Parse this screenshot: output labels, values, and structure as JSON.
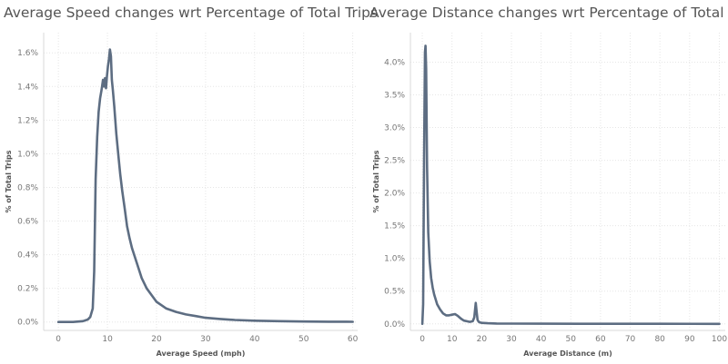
{
  "chart_data": [
    {
      "type": "line",
      "title": "Average Speed changes wrt Percentage of Total Trips",
      "xlabel": "Average Speed (mph)",
      "ylabel": "% of Total Trips",
      "xlim": [
        -3,
        61
      ],
      "ylim": [
        -0.05,
        1.72
      ],
      "xticks": [
        0,
        10,
        20,
        30,
        40,
        50,
        60
      ],
      "yticks": [
        0.0,
        0.2,
        0.4,
        0.6,
        0.8,
        1.0,
        1.2,
        1.4,
        1.6
      ],
      "ytick_labels": [
        "0.0%",
        "0.2%",
        "0.4%",
        "0.6%",
        "0.8%",
        "1.0%",
        "1.2%",
        "1.4%",
        "1.6%"
      ],
      "grid": true,
      "color": "#5d6d82",
      "series": [
        {
          "x": [
            0,
            3,
            5,
            6,
            6.5,
            7,
            7.3,
            7.6,
            7.9,
            8.2,
            8.5,
            8.8,
            9.1,
            9.3,
            9.5,
            9.7,
            9.9,
            10.1,
            10.3,
            10.5,
            10.7,
            10.9,
            11.1,
            11.4,
            11.8,
            12.2,
            12.6,
            13,
            13.5,
            14,
            14.5,
            15,
            16,
            17,
            18,
            19,
            20,
            21,
            22,
            24,
            26,
            28,
            30,
            33,
            36,
            40,
            45,
            50,
            55,
            60
          ],
          "y": [
            0.0,
            0.0,
            0.005,
            0.015,
            0.03,
            0.08,
            0.3,
            0.85,
            1.1,
            1.25,
            1.33,
            1.38,
            1.44,
            1.4,
            1.45,
            1.39,
            1.46,
            1.52,
            1.56,
            1.62,
            1.58,
            1.44,
            1.38,
            1.28,
            1.12,
            1.0,
            0.88,
            0.78,
            0.68,
            0.57,
            0.5,
            0.44,
            0.35,
            0.26,
            0.2,
            0.16,
            0.12,
            0.1,
            0.08,
            0.06,
            0.045,
            0.035,
            0.025,
            0.018,
            0.012,
            0.008,
            0.005,
            0.003,
            0.002,
            0.001
          ]
        }
      ]
    },
    {
      "type": "line",
      "title": "Average Distance changes wrt Percentage of Total Trips",
      "xlabel": "Average Distance (m)",
      "ylabel": "% of Total Trips",
      "xlim": [
        -4,
        102
      ],
      "ylim": [
        -0.1,
        4.45
      ],
      "xticks": [
        0,
        10,
        20,
        30,
        40,
        50,
        60,
        70,
        80,
        90,
        100
      ],
      "yticks": [
        0.0,
        0.5,
        1.0,
        1.5,
        2.0,
        2.5,
        3.0,
        3.5,
        4.0
      ],
      "ytick_labels": [
        "0.0%",
        "0.5%",
        "1.0%",
        "1.5%",
        "2.0%",
        "2.5%",
        "3.0%",
        "3.5%",
        "4.0%"
      ],
      "grid": true,
      "color": "#5d6d82",
      "series": [
        {
          "x": [
            0.0,
            0.3,
            0.6,
            0.9,
            1.1,
            1.3,
            1.6,
            2.0,
            2.5,
            3,
            3.5,
            4,
            5,
            6,
            7,
            8,
            9,
            10,
            11,
            12,
            13,
            14,
            15,
            16,
            17,
            17.5,
            18,
            18.3,
            18.6,
            19,
            19.5,
            20,
            22,
            25,
            30,
            40,
            60,
            80,
            100
          ],
          "y": [
            0.0,
            0.3,
            2.5,
            4.15,
            4.25,
            3.9,
            2.4,
            1.4,
            0.95,
            0.7,
            0.55,
            0.45,
            0.3,
            0.22,
            0.16,
            0.13,
            0.13,
            0.14,
            0.15,
            0.12,
            0.08,
            0.05,
            0.04,
            0.03,
            0.04,
            0.1,
            0.32,
            0.18,
            0.06,
            0.03,
            0.02,
            0.015,
            0.01,
            0.006,
            0.004,
            0.002,
            0.001,
            0.001,
            0.0
          ]
        }
      ]
    }
  ]
}
